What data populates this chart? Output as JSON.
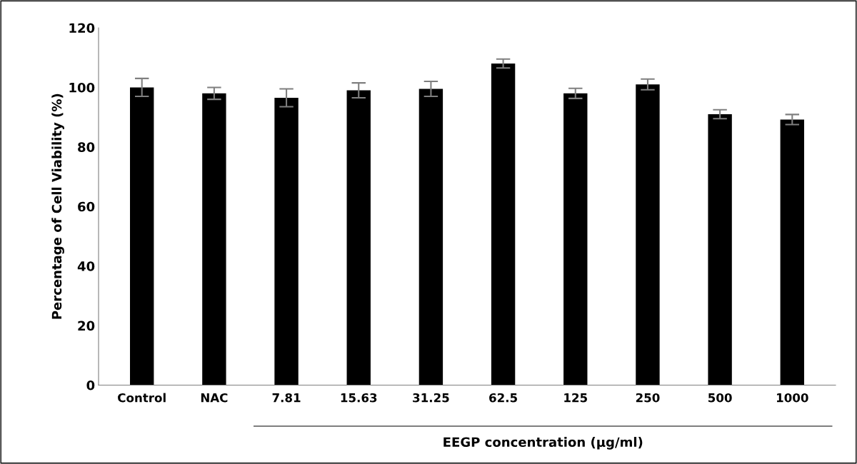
{
  "chart_data": {
    "type": "bar",
    "categories": [
      "Control",
      "NAC",
      "7.81",
      "15.63",
      "31.25",
      "62.5",
      "125",
      "250",
      "500",
      "1000"
    ],
    "values": [
      100,
      98,
      96.5,
      99,
      99.5,
      108,
      98,
      101,
      91,
      89.2
    ],
    "errors": [
      3,
      2,
      3,
      2.5,
      2.5,
      1.5,
      1.7,
      1.8,
      1.5,
      1.7
    ],
    "color": "#000000",
    "ylabel": "Percentage of Cell Viability (%)",
    "xlabel": "EEGP concentration (µg/ml)",
    "ylim": [
      0,
      120
    ],
    "yticks": [
      0,
      20,
      40,
      60,
      80,
      100,
      120
    ],
    "grid": false,
    "legend": false
  }
}
